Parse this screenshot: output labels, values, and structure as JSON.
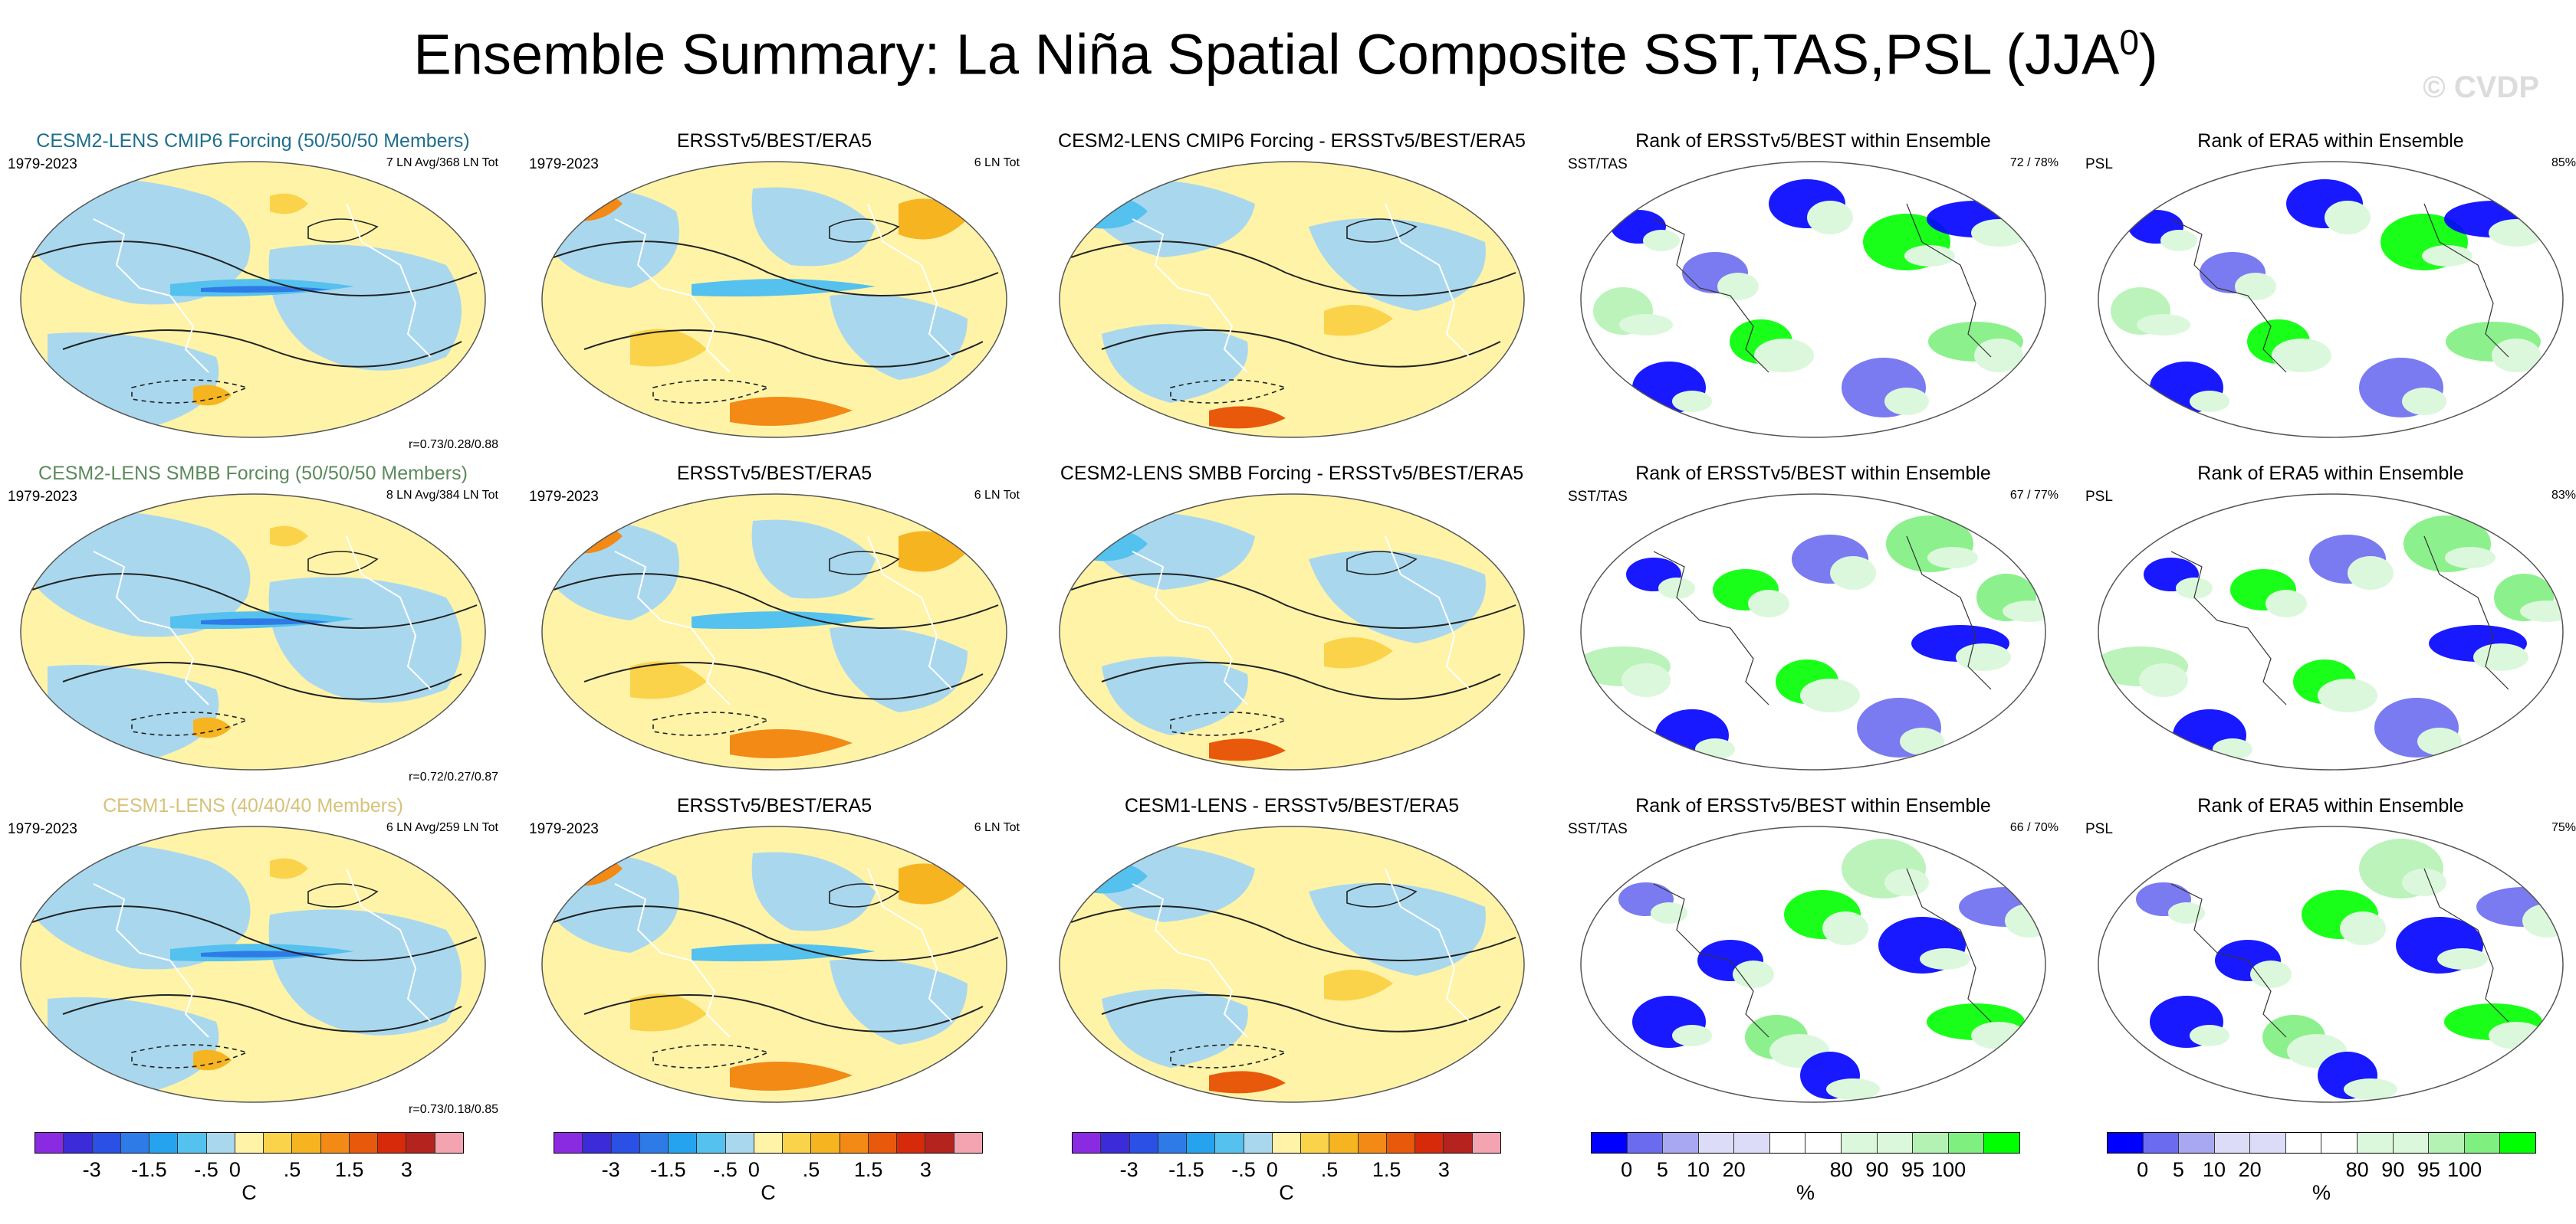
{
  "title": {
    "main": "Ensemble Summary: La Niña Spatial Composite SST,TAS,PSL (JJA",
    "sup": "0",
    "close": ")"
  },
  "watermark": "© CVDP",
  "rows": [
    {
      "col1": {
        "title": "CESM2-LENS CMIP6 Forcing (50/50/50 Members)",
        "title_color": "#1f6f8b",
        "period": "1979-2023",
        "right": "7 LN Avg/368 LN Tot",
        "corr": "r=0.73/0.28/0.88"
      },
      "col2": {
        "title": "ERSSTv5/BEST/ERA5",
        "period": "1979-2023",
        "right": "6 LN Tot"
      },
      "col3": {
        "title": "CESM2-LENS CMIP6 Forcing - ERSSTv5/BEST/ERA5"
      },
      "col4": {
        "title": "Rank of ERSSTv5/BEST within Ensemble",
        "left": "SST/TAS",
        "right": "72 /  78%"
      },
      "col5": {
        "title": "Rank of ERA5 within Ensemble",
        "left": "PSL",
        "right": "85%"
      }
    },
    {
      "col1": {
        "title": "CESM2-LENS SMBB Forcing (50/50/50 Members)",
        "title_color": "#5c8a5c",
        "period": "1979-2023",
        "right": "8 LN Avg/384 LN Tot",
        "corr": "r=0.72/0.27/0.87"
      },
      "col2": {
        "title": "ERSSTv5/BEST/ERA5",
        "period": "1979-2023",
        "right": "6 LN Tot"
      },
      "col3": {
        "title": "CESM2-LENS SMBB Forcing - ERSSTv5/BEST/ERA5"
      },
      "col4": {
        "title": "Rank of ERSSTv5/BEST within Ensemble",
        "left": "SST/TAS",
        "right": "67 /  77%"
      },
      "col5": {
        "title": "Rank of ERA5 within Ensemble",
        "left": "PSL",
        "right": "83%"
      }
    },
    {
      "col1": {
        "title": "CESM1-LENS (40/40/40 Members)",
        "title_color": "#d8c27a",
        "period": "1979-2023",
        "right": "6 LN Avg/259 LN Tot",
        "corr": "r=0.73/0.18/0.85"
      },
      "col2": {
        "title": "ERSSTv5/BEST/ERA5",
        "period": "1979-2023",
        "right": "6 LN Tot"
      },
      "col3": {
        "title": "CESM1-LENS - ERSSTv5/BEST/ERA5"
      },
      "col4": {
        "title": "Rank of ERSSTv5/BEST within Ensemble",
        "left": "SST/TAS",
        "right": "66 /  70%"
      },
      "col5": {
        "title": "Rank of ERA5 within Ensemble",
        "left": "PSL",
        "right": "75%"
      }
    }
  ],
  "colorbars": {
    "anomaly": {
      "colors": [
        "#8a2be2",
        "#3b2bd8",
        "#2a50e6",
        "#2e7be8",
        "#26a3ee",
        "#55c1ee",
        "#a9d8ee",
        "#fff3a8",
        "#fbd34a",
        "#f7b421",
        "#f28a15",
        "#e8590c",
        "#d62a0a",
        "#b5231e",
        "#f3a4b0"
      ],
      "ticks": [
        "-3",
        "-1.5",
        "-.5",
        "0",
        ".5",
        "1.5",
        "3"
      ],
      "unit": "C"
    },
    "rank": {
      "colors": [
        "#0000ff",
        "#6b6bf0",
        "#a8a8f2",
        "#dcdcf8",
        "#dcdcf8",
        "#ffffff",
        "#ffffff",
        "#dcf8dc",
        "#dcf8dc",
        "#b4f2b4",
        "#7fef7f",
        "#00ff00"
      ],
      "ticks": [
        "0",
        "5",
        "10",
        "20",
        "80",
        "90",
        "95",
        "100"
      ],
      "unit": "%"
    }
  }
}
